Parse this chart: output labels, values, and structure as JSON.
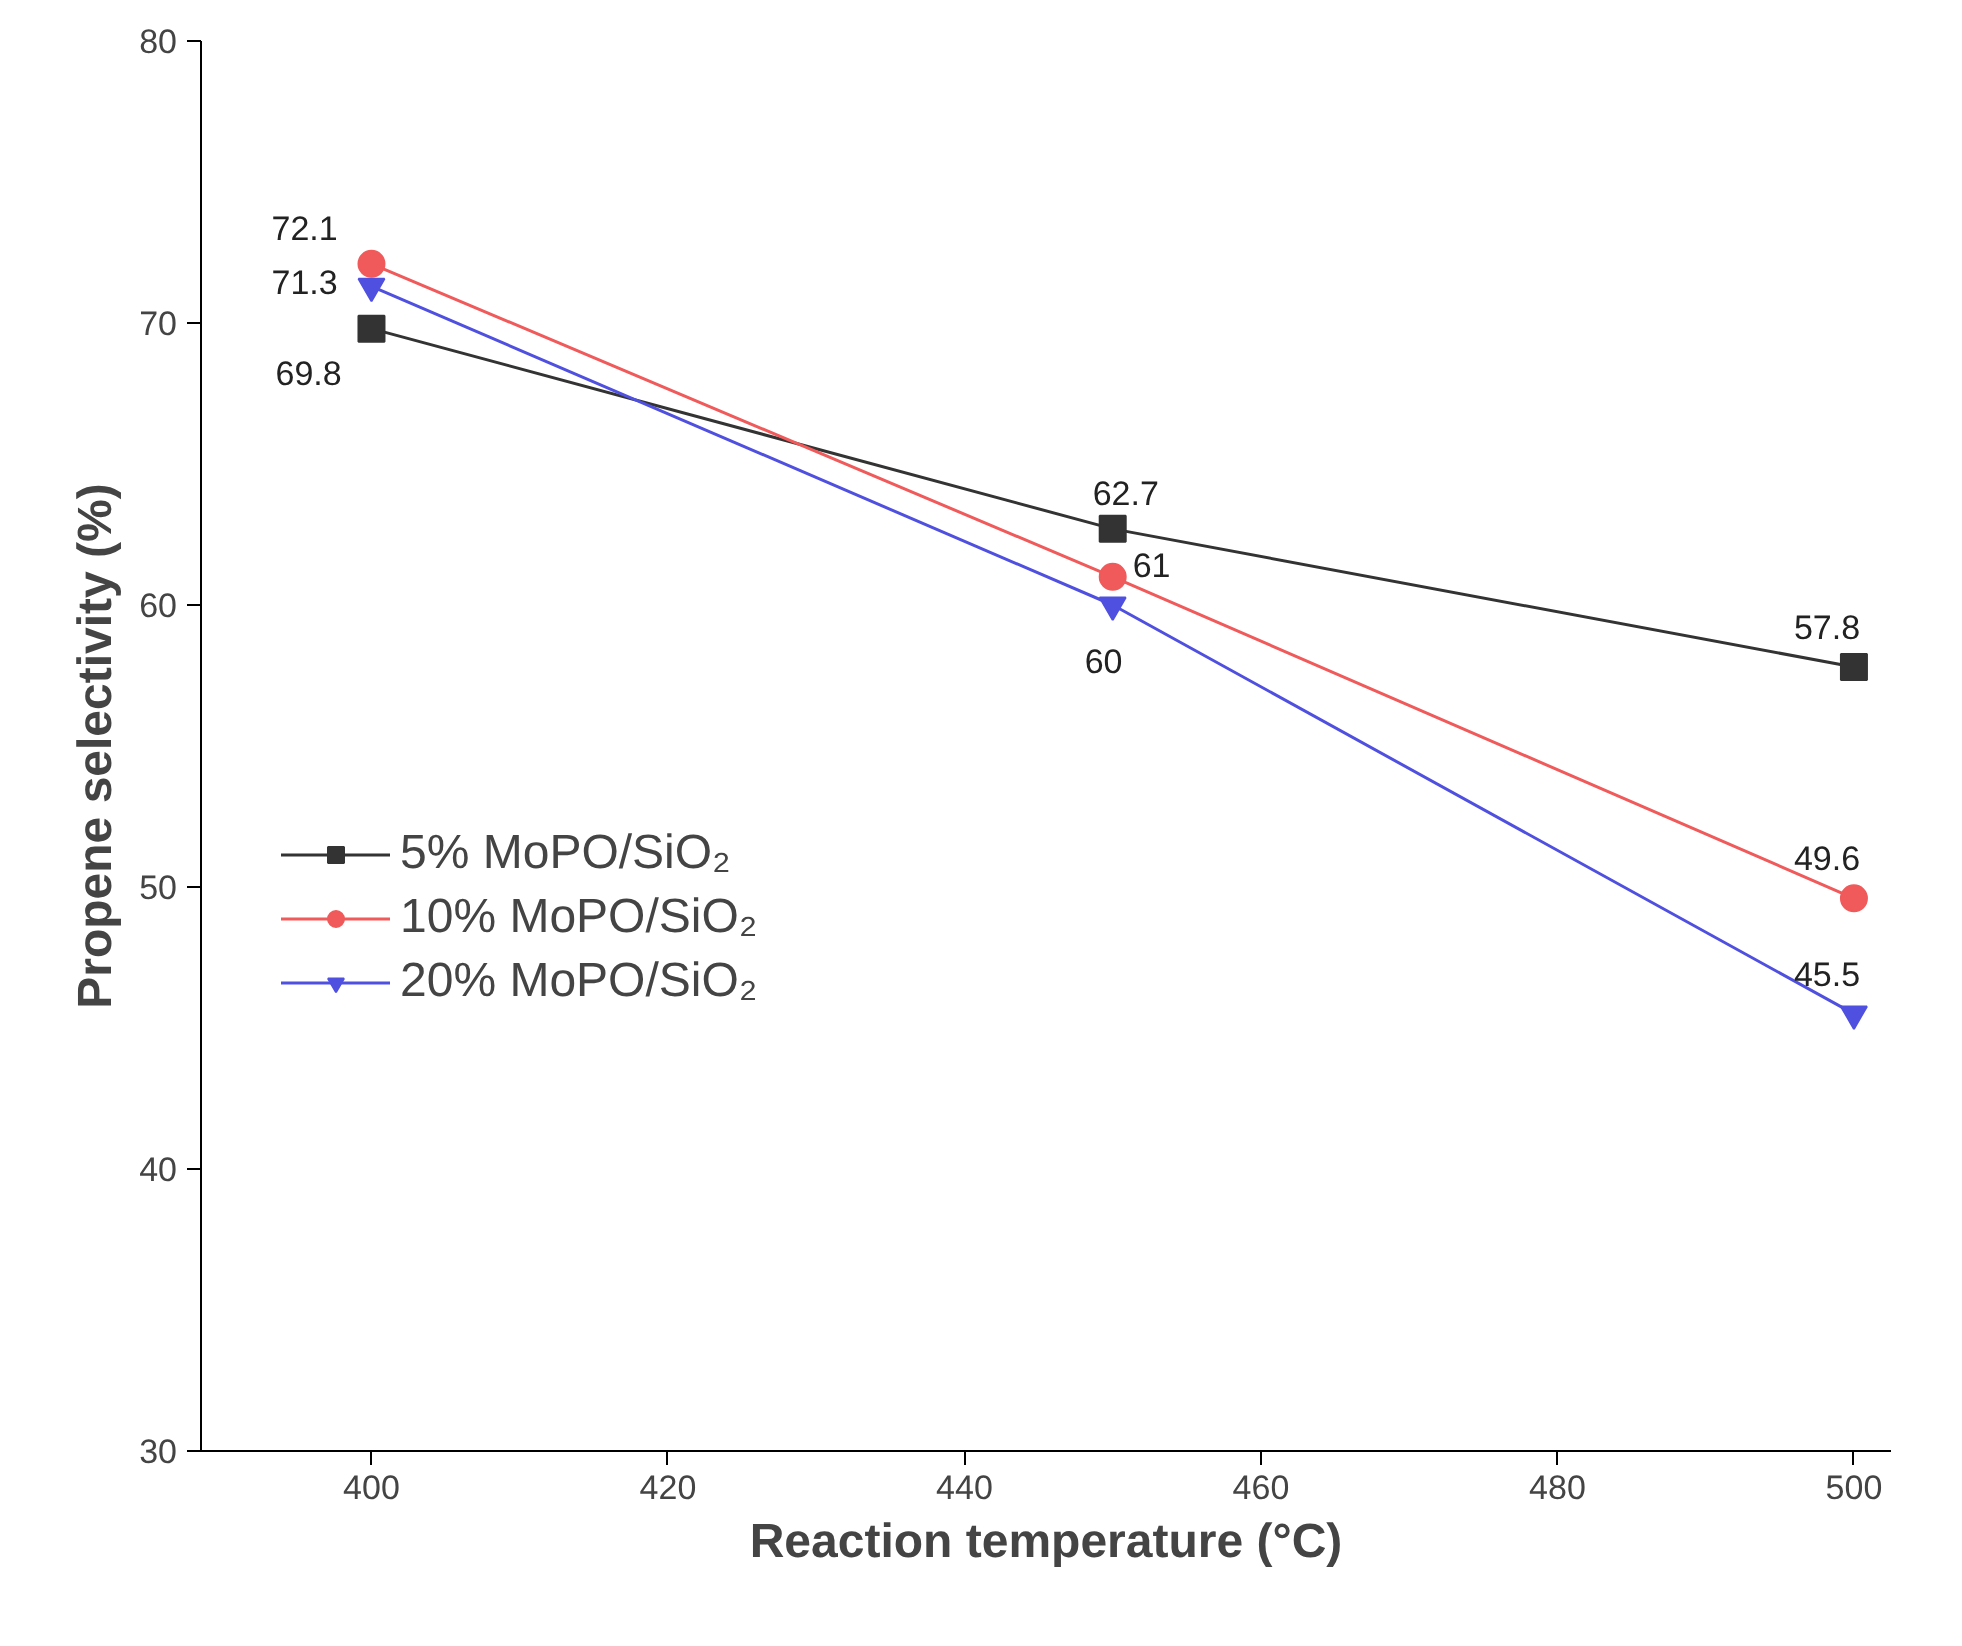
{
  "chart_data": {
    "type": "line",
    "xlabel": "Reaction temperature (°C)",
    "ylabel": "Propene selectivity (%)",
    "x": [
      400,
      450,
      500
    ],
    "series": [
      {
        "name": "5% MoPO/SiO₂",
        "color": "#333333",
        "marker": "square",
        "values": [
          69.8,
          62.7,
          57.8
        ]
      },
      {
        "name": "10% MoPO/SiO₂",
        "color": "#f05a5a",
        "marker": "circle",
        "values": [
          72.1,
          61,
          49.6
        ]
      },
      {
        "name": "20% MoPO/SiO₂",
        "color": "#5050e0",
        "marker": "triangle",
        "values": [
          71.3,
          60,
          45.5
        ]
      }
    ],
    "xlim": [
      388.5,
      502.5
    ],
    "ylim": [
      30,
      80
    ],
    "xticks": [
      400,
      420,
      440,
      460,
      480,
      500
    ],
    "yticks": [
      30,
      40,
      50,
      60,
      70,
      80
    ],
    "data_labels": true,
    "grid": false,
    "legend": "left",
    "line_style": "solid"
  }
}
